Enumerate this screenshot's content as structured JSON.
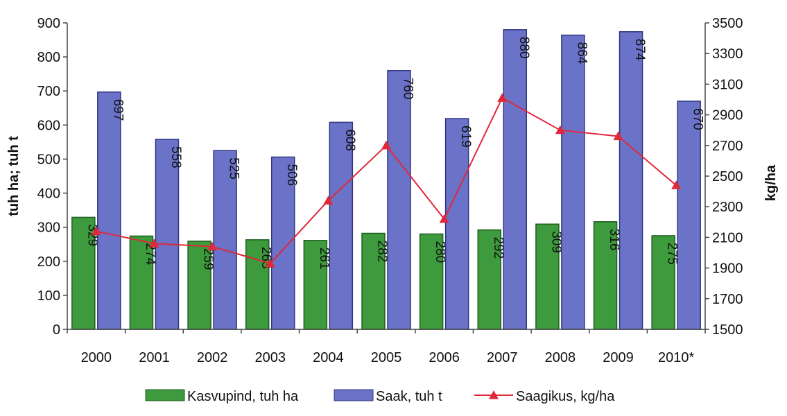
{
  "chart_data": {
    "type": "bar",
    "categories": [
      "2000",
      "2001",
      "2002",
      "2003",
      "2004",
      "2005",
      "2006",
      "2007",
      "2008",
      "2009",
      "2010*"
    ],
    "series": [
      {
        "name": "Kasvupind, tuh ha",
        "kind": "bar",
        "axis": "left",
        "color": "#3d9a3d",
        "values": [
          329,
          274,
          259,
          263,
          261,
          282,
          280,
          292,
          309,
          316,
          275
        ]
      },
      {
        "name": "Saak, tuh t",
        "kind": "bar",
        "axis": "left",
        "color": "#6b73c8",
        "values": [
          697,
          558,
          525,
          506,
          608,
          760,
          619,
          880,
          864,
          874,
          670
        ]
      },
      {
        "name": "Saagikus, kg/ha",
        "kind": "line",
        "axis": "right",
        "color": "#e0283a",
        "marker": "triangle",
        "values": [
          2140,
          2060,
          2040,
          1930,
          2340,
          2700,
          2220,
          3010,
          2800,
          2760,
          2440
        ]
      }
    ],
    "ylabel": "tuh ha; tuh t",
    "y2label": "kg/ha",
    "ylim": [
      0,
      900
    ],
    "y2lim": [
      1500,
      3500
    ],
    "yticks": [
      0,
      100,
      200,
      300,
      400,
      500,
      600,
      700,
      800,
      900
    ],
    "y2ticks": [
      1500,
      1700,
      1900,
      2100,
      2300,
      2500,
      2700,
      2900,
      3100,
      3300,
      3500
    ],
    "grid": false,
    "legend": "bottom"
  }
}
